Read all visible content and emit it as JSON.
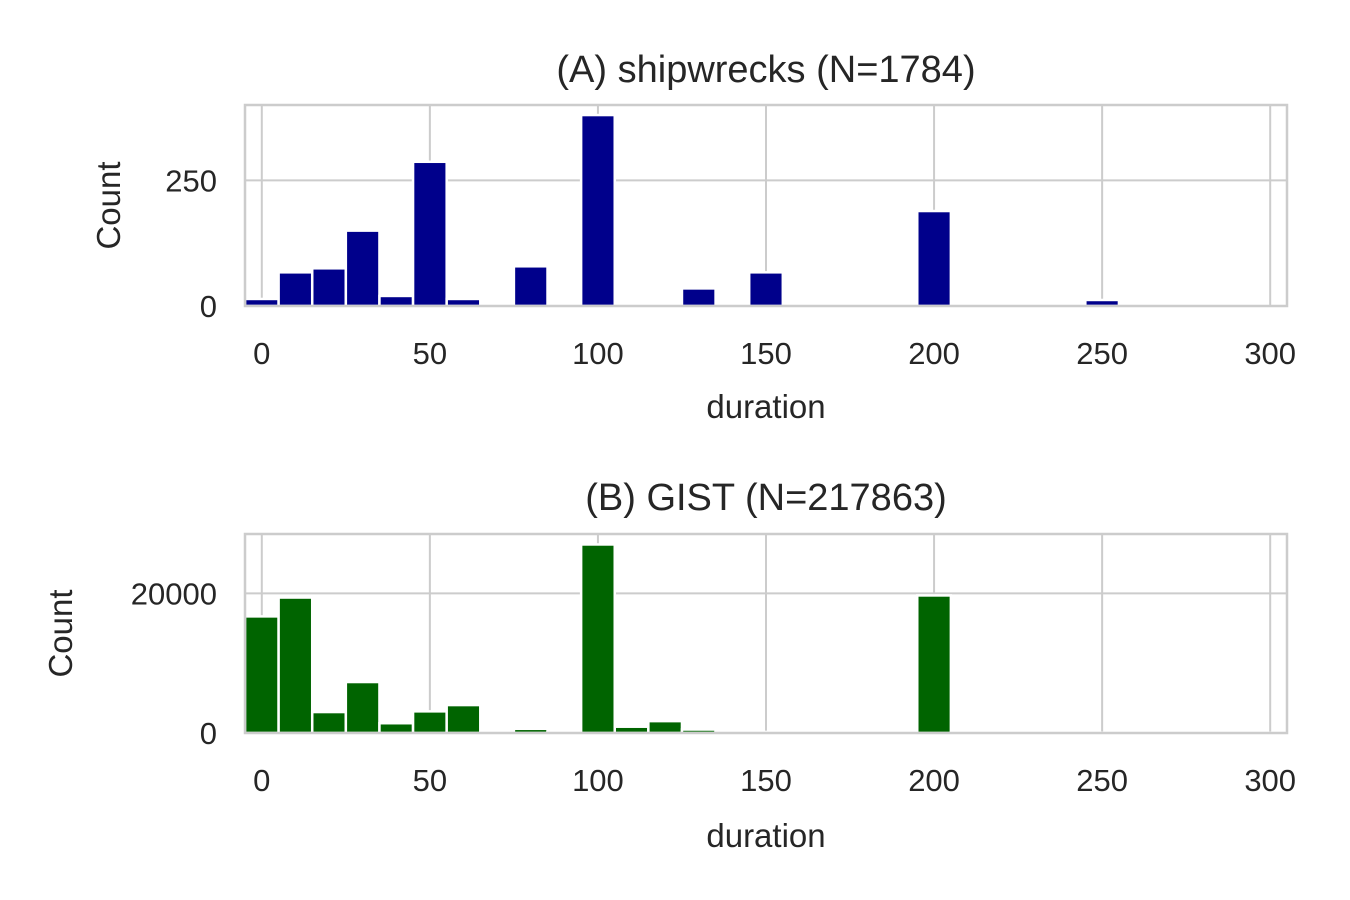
{
  "chart_data": [
    {
      "type": "bar",
      "title": "(A) shipwrecks (N=1784)",
      "xlabel": "duration",
      "ylabel": "Count",
      "color": "#00008b",
      "bin_width": 10,
      "xlim": [
        -5,
        305
      ],
      "ylim": [
        0,
        400
      ],
      "xticks": [
        0,
        50,
        100,
        150,
        200,
        250,
        300
      ],
      "yticks": [
        0,
        250
      ],
      "grid": true,
      "bins": [
        {
          "x0": -5,
          "x1": 5,
          "value": 14
        },
        {
          "x0": 5,
          "x1": 15,
          "value": 67
        },
        {
          "x0": 15,
          "x1": 25,
          "value": 75
        },
        {
          "x0": 25,
          "x1": 35,
          "value": 150
        },
        {
          "x0": 35,
          "x1": 45,
          "value": 20
        },
        {
          "x0": 45,
          "x1": 55,
          "value": 287
        },
        {
          "x0": 55,
          "x1": 65,
          "value": 14
        },
        {
          "x0": 75,
          "x1": 85,
          "value": 79
        },
        {
          "x0": 95,
          "x1": 105,
          "value": 380
        },
        {
          "x0": 125,
          "x1": 135,
          "value": 35
        },
        {
          "x0": 145,
          "x1": 155,
          "value": 67
        },
        {
          "x0": 195,
          "x1": 205,
          "value": 189
        },
        {
          "x0": 245,
          "x1": 255,
          "value": 12
        }
      ]
    },
    {
      "type": "bar",
      "title": "(B) GIST  (N=217863)",
      "xlabel": "duration",
      "ylabel": "Count",
      "color": "#006400",
      "bin_width": 10,
      "xlim": [
        -5,
        305
      ],
      "ylim": [
        0,
        28500
      ],
      "xticks": [
        0,
        50,
        100,
        150,
        200,
        250,
        300
      ],
      "yticks": [
        0,
        20000
      ],
      "grid": true,
      "bins": [
        {
          "x0": -5,
          "x1": 5,
          "value": 16700
        },
        {
          "x0": 5,
          "x1": 15,
          "value": 19400
        },
        {
          "x0": 15,
          "x1": 25,
          "value": 3000
        },
        {
          "x0": 25,
          "x1": 35,
          "value": 7300
        },
        {
          "x0": 35,
          "x1": 45,
          "value": 1400
        },
        {
          "x0": 45,
          "x1": 55,
          "value": 3100
        },
        {
          "x0": 55,
          "x1": 65,
          "value": 4000
        },
        {
          "x0": 65,
          "x1": 75,
          "value": 100
        },
        {
          "x0": 75,
          "x1": 85,
          "value": 600
        },
        {
          "x0": 85,
          "x1": 95,
          "value": 100
        },
        {
          "x0": 95,
          "x1": 105,
          "value": 27000
        },
        {
          "x0": 105,
          "x1": 115,
          "value": 900
        },
        {
          "x0": 115,
          "x1": 125,
          "value": 1700
        },
        {
          "x0": 125,
          "x1": 135,
          "value": 500
        },
        {
          "x0": 135,
          "x1": 145,
          "value": 150
        },
        {
          "x0": 145,
          "x1": 155,
          "value": 150
        },
        {
          "x0": 155,
          "x1": 165,
          "value": 80
        },
        {
          "x0": 165,
          "x1": 175,
          "value": 60
        },
        {
          "x0": 175,
          "x1": 185,
          "value": 60
        },
        {
          "x0": 185,
          "x1": 195,
          "value": 60
        },
        {
          "x0": 195,
          "x1": 205,
          "value": 19700
        },
        {
          "x0": 205,
          "x1": 215,
          "value": 60
        },
        {
          "x0": 215,
          "x1": 225,
          "value": 50
        },
        {
          "x0": 225,
          "x1": 235,
          "value": 40
        },
        {
          "x0": 235,
          "x1": 245,
          "value": 40
        },
        {
          "x0": 245,
          "x1": 255,
          "value": 40
        },
        {
          "x0": 255,
          "x1": 265,
          "value": 30
        },
        {
          "x0": 265,
          "x1": 275,
          "value": 30
        },
        {
          "x0": 275,
          "x1": 285,
          "value": 30
        },
        {
          "x0": 285,
          "x1": 295,
          "value": 30
        },
        {
          "x0": 295,
          "x1": 305,
          "value": 30
        }
      ]
    }
  ]
}
